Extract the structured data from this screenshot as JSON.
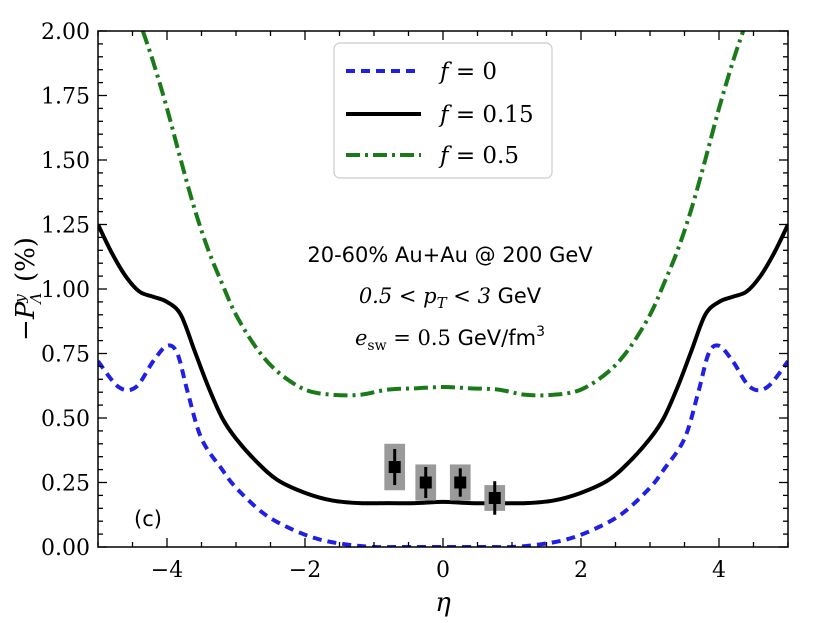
{
  "chart_data": {
    "type": "line",
    "xlabel": "η",
    "ylabel": "−P_Λ^y (%)",
    "xlim": [
      -5,
      5
    ],
    "ylim": [
      0,
      2.0
    ],
    "x_ticks": [
      "−4",
      "−2",
      "0",
      "2",
      "4"
    ],
    "y_ticks": [
      "0.00",
      "0.25",
      "0.50",
      "0.75",
      "1.00",
      "1.25",
      "1.50",
      "1.75",
      "2.00"
    ],
    "grid": false,
    "legend_position": "top-center",
    "annotations": {
      "line1": "20-60% Au+Au @ 200 GeV",
      "line2": "0.5 < p_T < 3 GeV",
      "line3": "e_sw = 0.5 GeV/fm^3",
      "panel": "(c)"
    },
    "series": [
      {
        "name": "f = 0",
        "color": "#1f1fe6",
        "style": "dashed",
        "x": [
          -5.0,
          -4.7,
          -4.45,
          -4.2,
          -4.0,
          -3.85,
          -3.7,
          -3.5,
          -3.2,
          -3.0,
          -2.6,
          -2.2,
          -1.8,
          -1.4,
          -1.0,
          -0.6,
          0.0,
          0.6,
          1.0,
          1.4,
          1.8,
          2.2,
          2.6,
          3.0,
          3.2,
          3.5,
          3.7,
          3.85,
          4.0,
          4.2,
          4.45,
          4.7,
          5.0
        ],
        "y": [
          0.72,
          0.62,
          0.62,
          0.72,
          0.78,
          0.75,
          0.6,
          0.42,
          0.3,
          0.23,
          0.13,
          0.07,
          0.03,
          0.01,
          0.0,
          0.0,
          0.0,
          0.0,
          0.0,
          0.01,
          0.03,
          0.07,
          0.13,
          0.23,
          0.3,
          0.42,
          0.6,
          0.75,
          0.78,
          0.72,
          0.62,
          0.62,
          0.72
        ]
      },
      {
        "name": "f = 0.15",
        "color": "#000000",
        "style": "solid",
        "x": [
          -5.0,
          -4.8,
          -4.6,
          -4.4,
          -4.2,
          -4.0,
          -3.8,
          -3.6,
          -3.4,
          -3.2,
          -3.0,
          -2.7,
          -2.4,
          -2.0,
          -1.6,
          -1.2,
          -0.8,
          -0.4,
          0.0,
          0.4,
          0.8,
          1.2,
          1.6,
          2.0,
          2.4,
          2.7,
          3.0,
          3.2,
          3.4,
          3.6,
          3.8,
          4.0,
          4.2,
          4.4,
          4.6,
          4.8,
          5.0
        ],
        "y": [
          1.25,
          1.14,
          1.05,
          0.99,
          0.97,
          0.95,
          0.9,
          0.76,
          0.62,
          0.5,
          0.42,
          0.33,
          0.26,
          0.21,
          0.18,
          0.17,
          0.17,
          0.17,
          0.175,
          0.17,
          0.17,
          0.17,
          0.18,
          0.21,
          0.26,
          0.33,
          0.42,
          0.5,
          0.62,
          0.76,
          0.9,
          0.95,
          0.97,
          0.99,
          1.05,
          1.14,
          1.25
        ]
      },
      {
        "name": "f = 0.5",
        "color": "#1a7a1a",
        "style": "dashdot",
        "x": [
          -4.35,
          -4.2,
          -4.0,
          -3.8,
          -3.6,
          -3.4,
          -3.2,
          -3.0,
          -2.7,
          -2.4,
          -2.0,
          -1.6,
          -1.2,
          -0.8,
          -0.4,
          0.0,
          0.4,
          0.8,
          1.2,
          1.6,
          2.0,
          2.4,
          2.7,
          3.0,
          3.2,
          3.4,
          3.6,
          3.8,
          4.0,
          4.2,
          4.35
        ],
        "y": [
          2.0,
          1.88,
          1.7,
          1.5,
          1.31,
          1.15,
          1.02,
          0.9,
          0.77,
          0.68,
          0.61,
          0.59,
          0.59,
          0.61,
          0.615,
          0.62,
          0.615,
          0.61,
          0.59,
          0.59,
          0.61,
          0.68,
          0.77,
          0.9,
          1.02,
          1.15,
          1.31,
          1.5,
          1.7,
          1.88,
          2.0
        ]
      }
    ],
    "data_points": {
      "marker": "square",
      "x": [
        -0.7,
        -0.25,
        0.25,
        0.75
      ],
      "y": [
        0.31,
        0.25,
        0.25,
        0.19
      ],
      "stat_err": [
        0.07,
        0.06,
        0.055,
        0.065
      ],
      "sys_err": [
        0.09,
        0.07,
        0.07,
        0.05
      ],
      "sys_half_width": 0.15
    }
  }
}
